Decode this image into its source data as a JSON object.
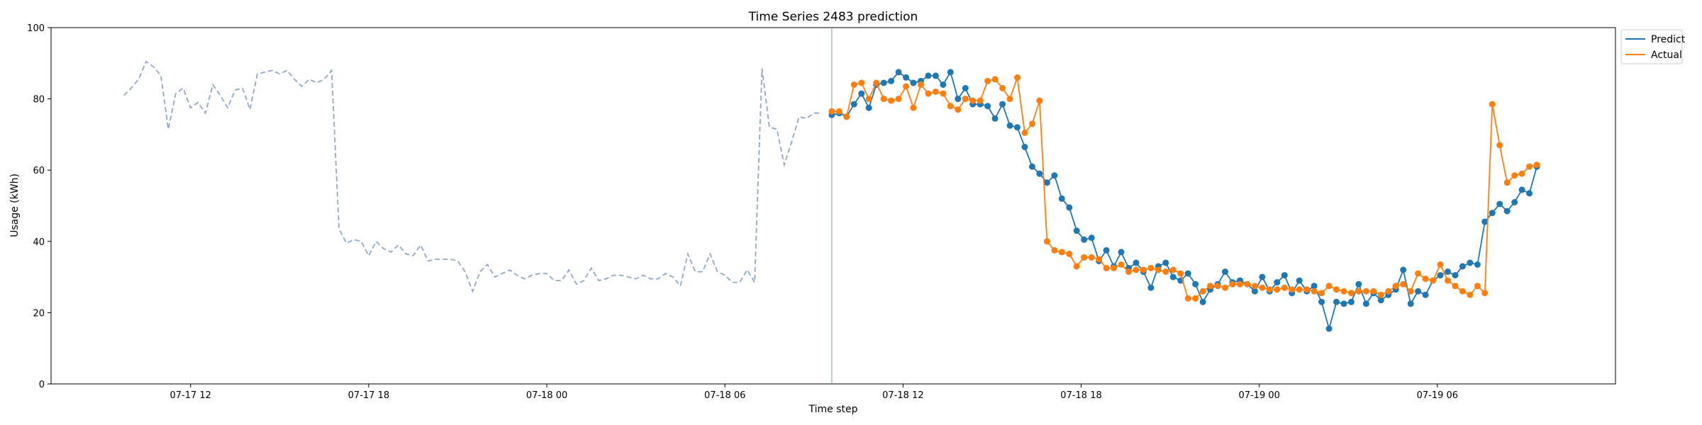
{
  "chart_data": {
    "type": "line",
    "title": "Time Series 2483 prediction",
    "xlabel": "Time step",
    "ylabel": "Usage (kWh)",
    "ylim": [
      0,
      100
    ],
    "yticks": [
      0,
      20,
      40,
      60,
      80,
      100
    ],
    "xticks": [
      "07-17 12",
      "07-17 18",
      "07-18 00",
      "07-18 06",
      "07-18 12",
      "07-18 18",
      "07-19 00",
      "07-19 06"
    ],
    "xlim_hours": [
      -4.7,
      48.0
    ],
    "x_units": "hours since 07-17 12:00",
    "forecast_start_hour": 21.6,
    "legend_position": "upper-right-outside",
    "colors": {
      "history": "#8fa9cb",
      "predict": "#1f77b4",
      "actual": "#ff7f0e",
      "vline": "#8fa9cb"
    },
    "history": {
      "x_start": -2.25,
      "x_step": 0.25,
      "values": [
        81,
        83,
        85.5,
        90.5,
        89,
        86.5,
        71.5,
        81.5,
        83,
        77.5,
        79,
        76,
        84,
        81,
        77.5,
        82.5,
        83,
        77,
        87,
        87.5,
        88,
        87,
        88,
        85.5,
        83.5,
        85.5,
        84.5,
        85.5,
        88,
        43.5,
        39.5,
        40.5,
        40,
        36,
        40,
        38,
        37,
        39,
        36.5,
        36,
        39,
        34.5,
        35,
        35,
        35,
        34.5,
        31.5,
        26,
        31.5,
        33.5,
        30,
        31,
        32,
        30.5,
        29.5,
        30.5,
        31,
        31,
        29,
        29,
        32,
        28,
        29,
        32.5,
        29,
        29.5,
        30.5,
        30.5,
        30,
        29.5,
        30.5,
        29.5,
        29.5,
        31,
        30,
        27.5,
        36.5,
        31.5,
        31.5,
        36.5,
        31.5,
        30.5,
        28.5,
        28.5,
        32,
        28.5,
        88.5,
        72,
        71.5,
        61.5,
        68,
        75,
        74.5,
        76,
        76
      ]
    },
    "forecast": {
      "x_start": 21.6,
      "x_step": 0.25,
      "series": [
        {
          "name": "Predict",
          "values": [
            75.5,
            76,
            75,
            78.5,
            81.5,
            77.5,
            84,
            84.5,
            85,
            87.5,
            86,
            84.5,
            85,
            86.5,
            86.5,
            84,
            87.5,
            80,
            83,
            78.5,
            78.5,
            78,
            74.5,
            78.5,
            72.5,
            72,
            66.5,
            61,
            59,
            56.5,
            58.5,
            52,
            49.5,
            43,
            40.5,
            41,
            34.5,
            37.5,
            33,
            37,
            32.5,
            34,
            31.5,
            27,
            33,
            34,
            30,
            29,
            31,
            28,
            23,
            26.5,
            28,
            31.5,
            28.5,
            29,
            28,
            26,
            30,
            26,
            28.5,
            30.5,
            25.5,
            29,
            26,
            27.5,
            23,
            15.5,
            23,
            22.5,
            23,
            28,
            22.5,
            25.5,
            23.5,
            25,
            26.5,
            32,
            22.5,
            26,
            25,
            29,
            30.5,
            31.5,
            30.5,
            33,
            34,
            33.5,
            45.5,
            48,
            50.5,
            48.5,
            51,
            54.5,
            53.5,
            61
          ]
        },
        {
          "name": "Actual",
          "values": [
            76.5,
            76.5,
            75,
            84,
            84.5,
            80,
            84.5,
            80,
            79.5,
            80,
            83.5,
            77.5,
            84,
            81.5,
            82,
            81.5,
            78,
            77,
            80,
            79.5,
            79.5,
            85,
            85.5,
            83,
            80,
            86,
            70.5,
            73,
            79.5,
            40,
            37.5,
            37,
            36.5,
            33,
            35.5,
            35.5,
            35,
            32.5,
            32.5,
            33.5,
            31.5,
            32,
            32,
            32.5,
            32,
            31.5,
            32,
            31,
            24,
            24,
            26,
            27.5,
            27.5,
            27,
            28,
            28,
            28,
            27.5,
            27,
            26.5,
            26.5,
            27,
            26.5,
            26.5,
            26.5,
            26,
            25.5,
            27.5,
            26.5,
            26,
            25.5,
            26,
            26,
            26,
            25,
            26,
            27.5,
            28,
            26,
            31,
            29.5,
            29,
            33.5,
            29,
            27.5,
            26,
            25,
            27.5,
            25.5,
            78.5,
            67,
            56.5,
            58.5,
            59,
            61,
            61.5
          ]
        }
      ]
    }
  }
}
